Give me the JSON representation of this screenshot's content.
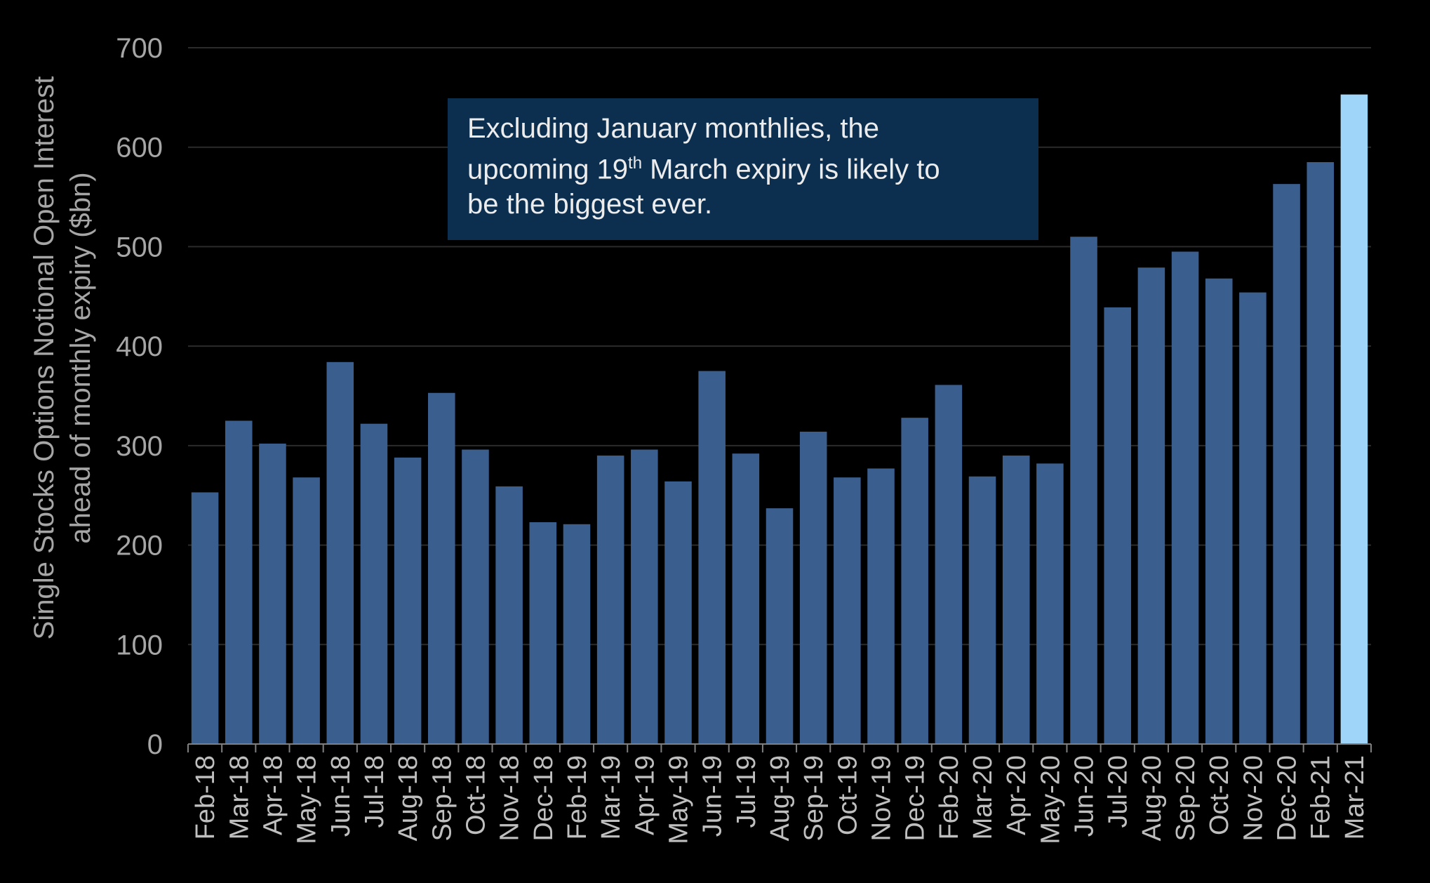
{
  "chart_data": {
    "type": "bar",
    "title": "",
    "xlabel": "",
    "ylabel_line1": "Single Stocks Options Notional Open Interest",
    "ylabel_line2": "ahead of monthly expiry ($bn)",
    "ylim": [
      0,
      700
    ],
    "yticks": [
      0,
      100,
      200,
      300,
      400,
      500,
      600,
      700
    ],
    "grid": true,
    "categories": [
      "Feb-18",
      "Mar-18",
      "Apr-18",
      "May-18",
      "Jun-18",
      "Jul-18",
      "Aug-18",
      "Sep-18",
      "Oct-18",
      "Nov-18",
      "Dec-18",
      "Feb-19",
      "Mar-19",
      "Apr-19",
      "May-19",
      "Jun-19",
      "Jul-19",
      "Aug-19",
      "Sep-19",
      "Oct-19",
      "Nov-19",
      "Dec-19",
      "Feb-20",
      "Mar-20",
      "Apr-20",
      "May-20",
      "Jun-20",
      "Jul-20",
      "Aug-20",
      "Sep-20",
      "Oct-20",
      "Nov-20",
      "Dec-20",
      "Feb-21",
      "Mar-21"
    ],
    "values": [
      253,
      325,
      302,
      268,
      384,
      322,
      288,
      353,
      296,
      259,
      223,
      221,
      290,
      296,
      264,
      375,
      292,
      237,
      314,
      268,
      277,
      328,
      361,
      269,
      290,
      282,
      510,
      439,
      479,
      495,
      468,
      454,
      563,
      585,
      653
    ],
    "highlight_index": 34,
    "colors": {
      "bar": "#3a5f8f",
      "highlight": "#9fd5f9",
      "grid": "#2b2b2b",
      "axis": "#7f7f7f"
    },
    "annotation": {
      "line1": "Excluding January monthlies, the",
      "line2_pre": "upcoming 19",
      "line2_sup": "th",
      "line2_post": " March expiry is likely to",
      "line3": "be the biggest ever."
    }
  }
}
